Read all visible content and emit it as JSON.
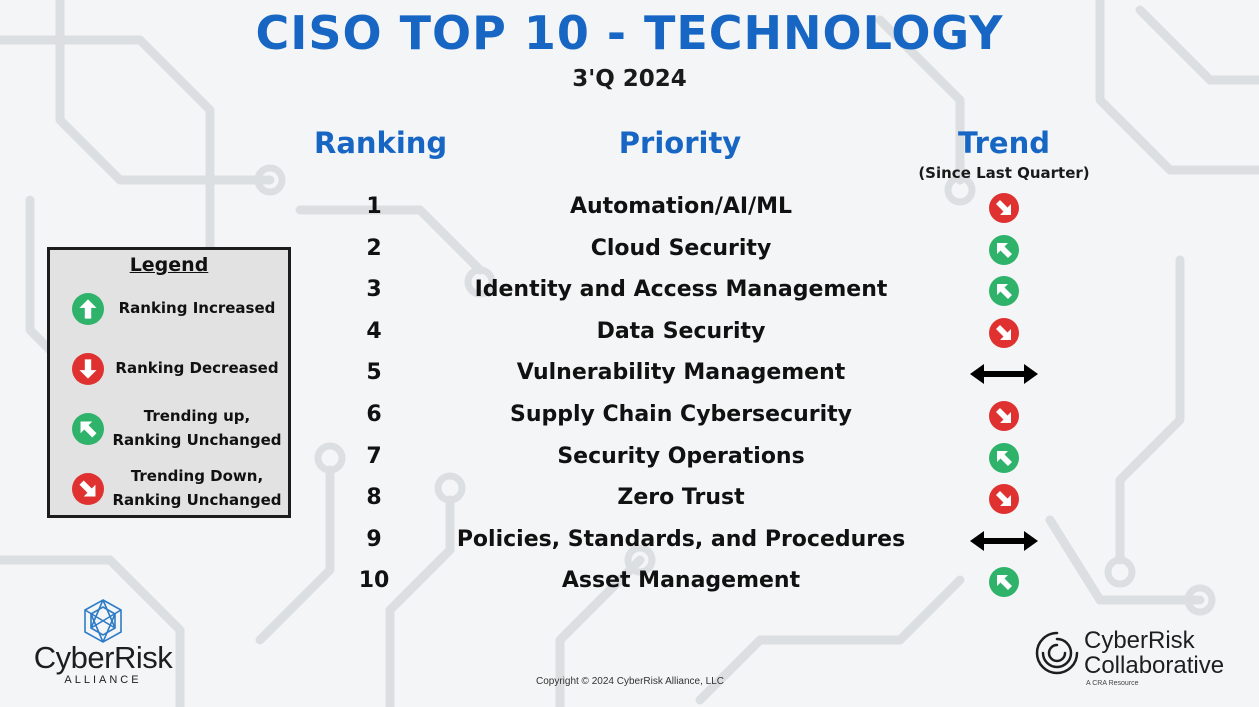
{
  "header": {
    "title": "CISO TOP 10 - TECHNOLOGY",
    "period": "3'Q 2024"
  },
  "columns": {
    "ranking": "Ranking",
    "priority": "Priority",
    "trend": "Trend",
    "trend_note": "(Since Last Quarter)"
  },
  "rows": [
    {
      "rank": "1",
      "priority": "Automation/AI/ML",
      "trend": "trending-down"
    },
    {
      "rank": "2",
      "priority": "Cloud Security",
      "trend": "trending-up"
    },
    {
      "rank": "3",
      "priority": "Identity and Access Management",
      "trend": "trending-up"
    },
    {
      "rank": "4",
      "priority": "Data Security",
      "trend": "trending-down"
    },
    {
      "rank": "5",
      "priority": "Vulnerability Management",
      "trend": "unchanged"
    },
    {
      "rank": "6",
      "priority": "Supply Chain Cybersecurity",
      "trend": "trending-down"
    },
    {
      "rank": "7",
      "priority": "Security Operations",
      "trend": "trending-up"
    },
    {
      "rank": "8",
      "priority": "Zero Trust",
      "trend": "trending-down"
    },
    {
      "rank": "9",
      "priority": "Policies, Standards, and Procedures",
      "trend": "unchanged"
    },
    {
      "rank": "10",
      "priority": "Asset Management",
      "trend": "trending-up"
    }
  ],
  "legend": {
    "title": "Legend",
    "items": [
      {
        "icon": "arrow-up-icon",
        "color": "#2fb36b",
        "label": "Ranking Increased"
      },
      {
        "icon": "arrow-down-icon",
        "color": "#e03131",
        "label": "Ranking Decreased"
      },
      {
        "icon": "arrow-up-left-icon",
        "color": "#2fb36b",
        "label": "Trending up,\nRanking Unchanged"
      },
      {
        "icon": "arrow-down-right-icon",
        "color": "#e03131",
        "label": "Trending Down,\nRanking Unchanged"
      }
    ]
  },
  "colors": {
    "title_blue": "#1766c4",
    "up_green": "#2fb36b",
    "down_red": "#e03131",
    "arrow_black": "#000000"
  },
  "footer": {
    "left_logo": {
      "name": "CyberRisk",
      "sub": "ALLIANCE"
    },
    "copyright": "Copyright © 2024 CyberRisk Alliance, LLC",
    "right_logo": {
      "line1": "CyberRisk",
      "line2": "Collaborative",
      "sub": "A CRA Resource"
    }
  }
}
